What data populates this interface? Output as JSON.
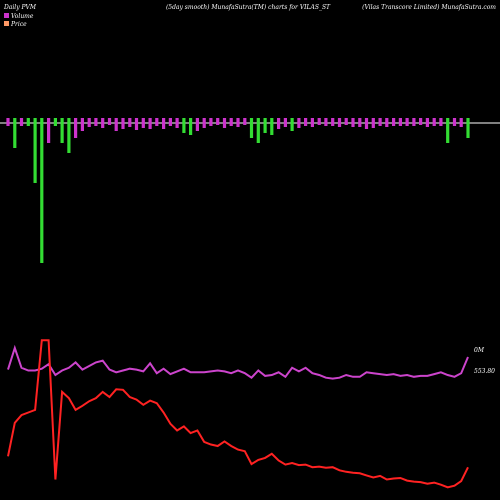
{
  "header": {
    "left": "Daily PVM",
    "center": "(5day smooth) MunafaSutra(TM) charts for VILAS_ST",
    "right": "(Vilas Transcore  Limited) MunafaSutra.com"
  },
  "legend": [
    {
      "label": "Volume",
      "color": "#cc33cc"
    },
    {
      "label": "Price",
      "color": "#ff9966"
    }
  ],
  "right_labels": {
    "volume_line": "0M",
    "price_value": "553.80"
  },
  "colors": {
    "up": "#cc33cc",
    "down": "#33dd33",
    "price_line": "#ff2222",
    "volume_line": "#cc44cc",
    "zero_line": "#ffffff"
  },
  "chart_data": {
    "type": "bar",
    "series": [
      {
        "name": "Volume",
        "values": [
          -3,
          -25,
          -3,
          -3,
          -60,
          -140,
          -20,
          -3,
          -20,
          -30,
          -15,
          -8,
          -4,
          -3,
          -5,
          -2,
          -8,
          -6,
          -4,
          -7,
          -5,
          -6,
          -3,
          -6,
          -3,
          -5,
          -10,
          -12,
          -8,
          -5,
          -3,
          -2,
          -5,
          -3,
          -4,
          -2,
          -15,
          -20,
          -10,
          -12,
          -6,
          -4,
          -8,
          -5,
          -3,
          -4,
          -2,
          -3,
          -3,
          -4,
          -2,
          -4,
          -4,
          -6,
          -5,
          -3,
          -4,
          -3,
          -3,
          -3,
          -3,
          -2,
          -4,
          -3,
          -3,
          -20,
          -3,
          -4,
          -15
        ],
        "updown": [
          "u",
          "d",
          "u",
          "d",
          "d",
          "d",
          "u",
          "d",
          "d",
          "d",
          "u",
          "u",
          "u",
          "u",
          "u",
          "u",
          "u",
          "u",
          "u",
          "u",
          "u",
          "u",
          "u",
          "u",
          "u",
          "u",
          "d",
          "d",
          "u",
          "u",
          "u",
          "u",
          "u",
          "u",
          "u",
          "u",
          "d",
          "d",
          "d",
          "d",
          "u",
          "u",
          "d",
          "u",
          "u",
          "u",
          "u",
          "u",
          "u",
          "u",
          "u",
          "u",
          "u",
          "u",
          "u",
          "u",
          "u",
          "u",
          "u",
          "u",
          "u",
          "u",
          "u",
          "u",
          "u",
          "d",
          "u",
          "u",
          "d"
        ]
      },
      {
        "name": "Price",
        "values": [
          575,
          640,
          655,
          660,
          665,
          800,
          800,
          530,
          700,
          688,
          665,
          673,
          682,
          688,
          700,
          690,
          705,
          704,
          690,
          685,
          675,
          683,
          678,
          660,
          638,
          625,
          633,
          620,
          625,
          603,
          598,
          595,
          604,
          595,
          588,
          585,
          560,
          568,
          572,
          580,
          567,
          559,
          562,
          558,
          559,
          554,
          555,
          553,
          554,
          548,
          545,
          543,
          542,
          538,
          534,
          537,
          530,
          532,
          533,
          528,
          526,
          525,
          522,
          524,
          520,
          515,
          518,
          527,
          553.8
        ]
      },
      {
        "name": "Volume trend",
        "values": [
          0.56,
          0.8,
          0.58,
          0.55,
          0.55,
          0.57,
          0.62,
          0.5,
          0.55,
          0.58,
          0.64,
          0.56,
          0.6,
          0.64,
          0.66,
          0.56,
          0.53,
          0.55,
          0.57,
          0.56,
          0.54,
          0.63,
          0.52,
          0.57,
          0.51,
          0.54,
          0.57,
          0.53,
          0.53,
          0.53,
          0.54,
          0.55,
          0.54,
          0.52,
          0.55,
          0.52,
          0.47,
          0.55,
          0.49,
          0.5,
          0.53,
          0.48,
          0.58,
          0.54,
          0.58,
          0.52,
          0.5,
          0.47,
          0.46,
          0.47,
          0.5,
          0.48,
          0.48,
          0.53,
          0.52,
          0.51,
          0.5,
          0.51,
          0.49,
          0.5,
          0.48,
          0.49,
          0.49,
          0.51,
          0.53,
          0.5,
          0.48,
          0.52,
          0.7
        ]
      }
    ]
  }
}
